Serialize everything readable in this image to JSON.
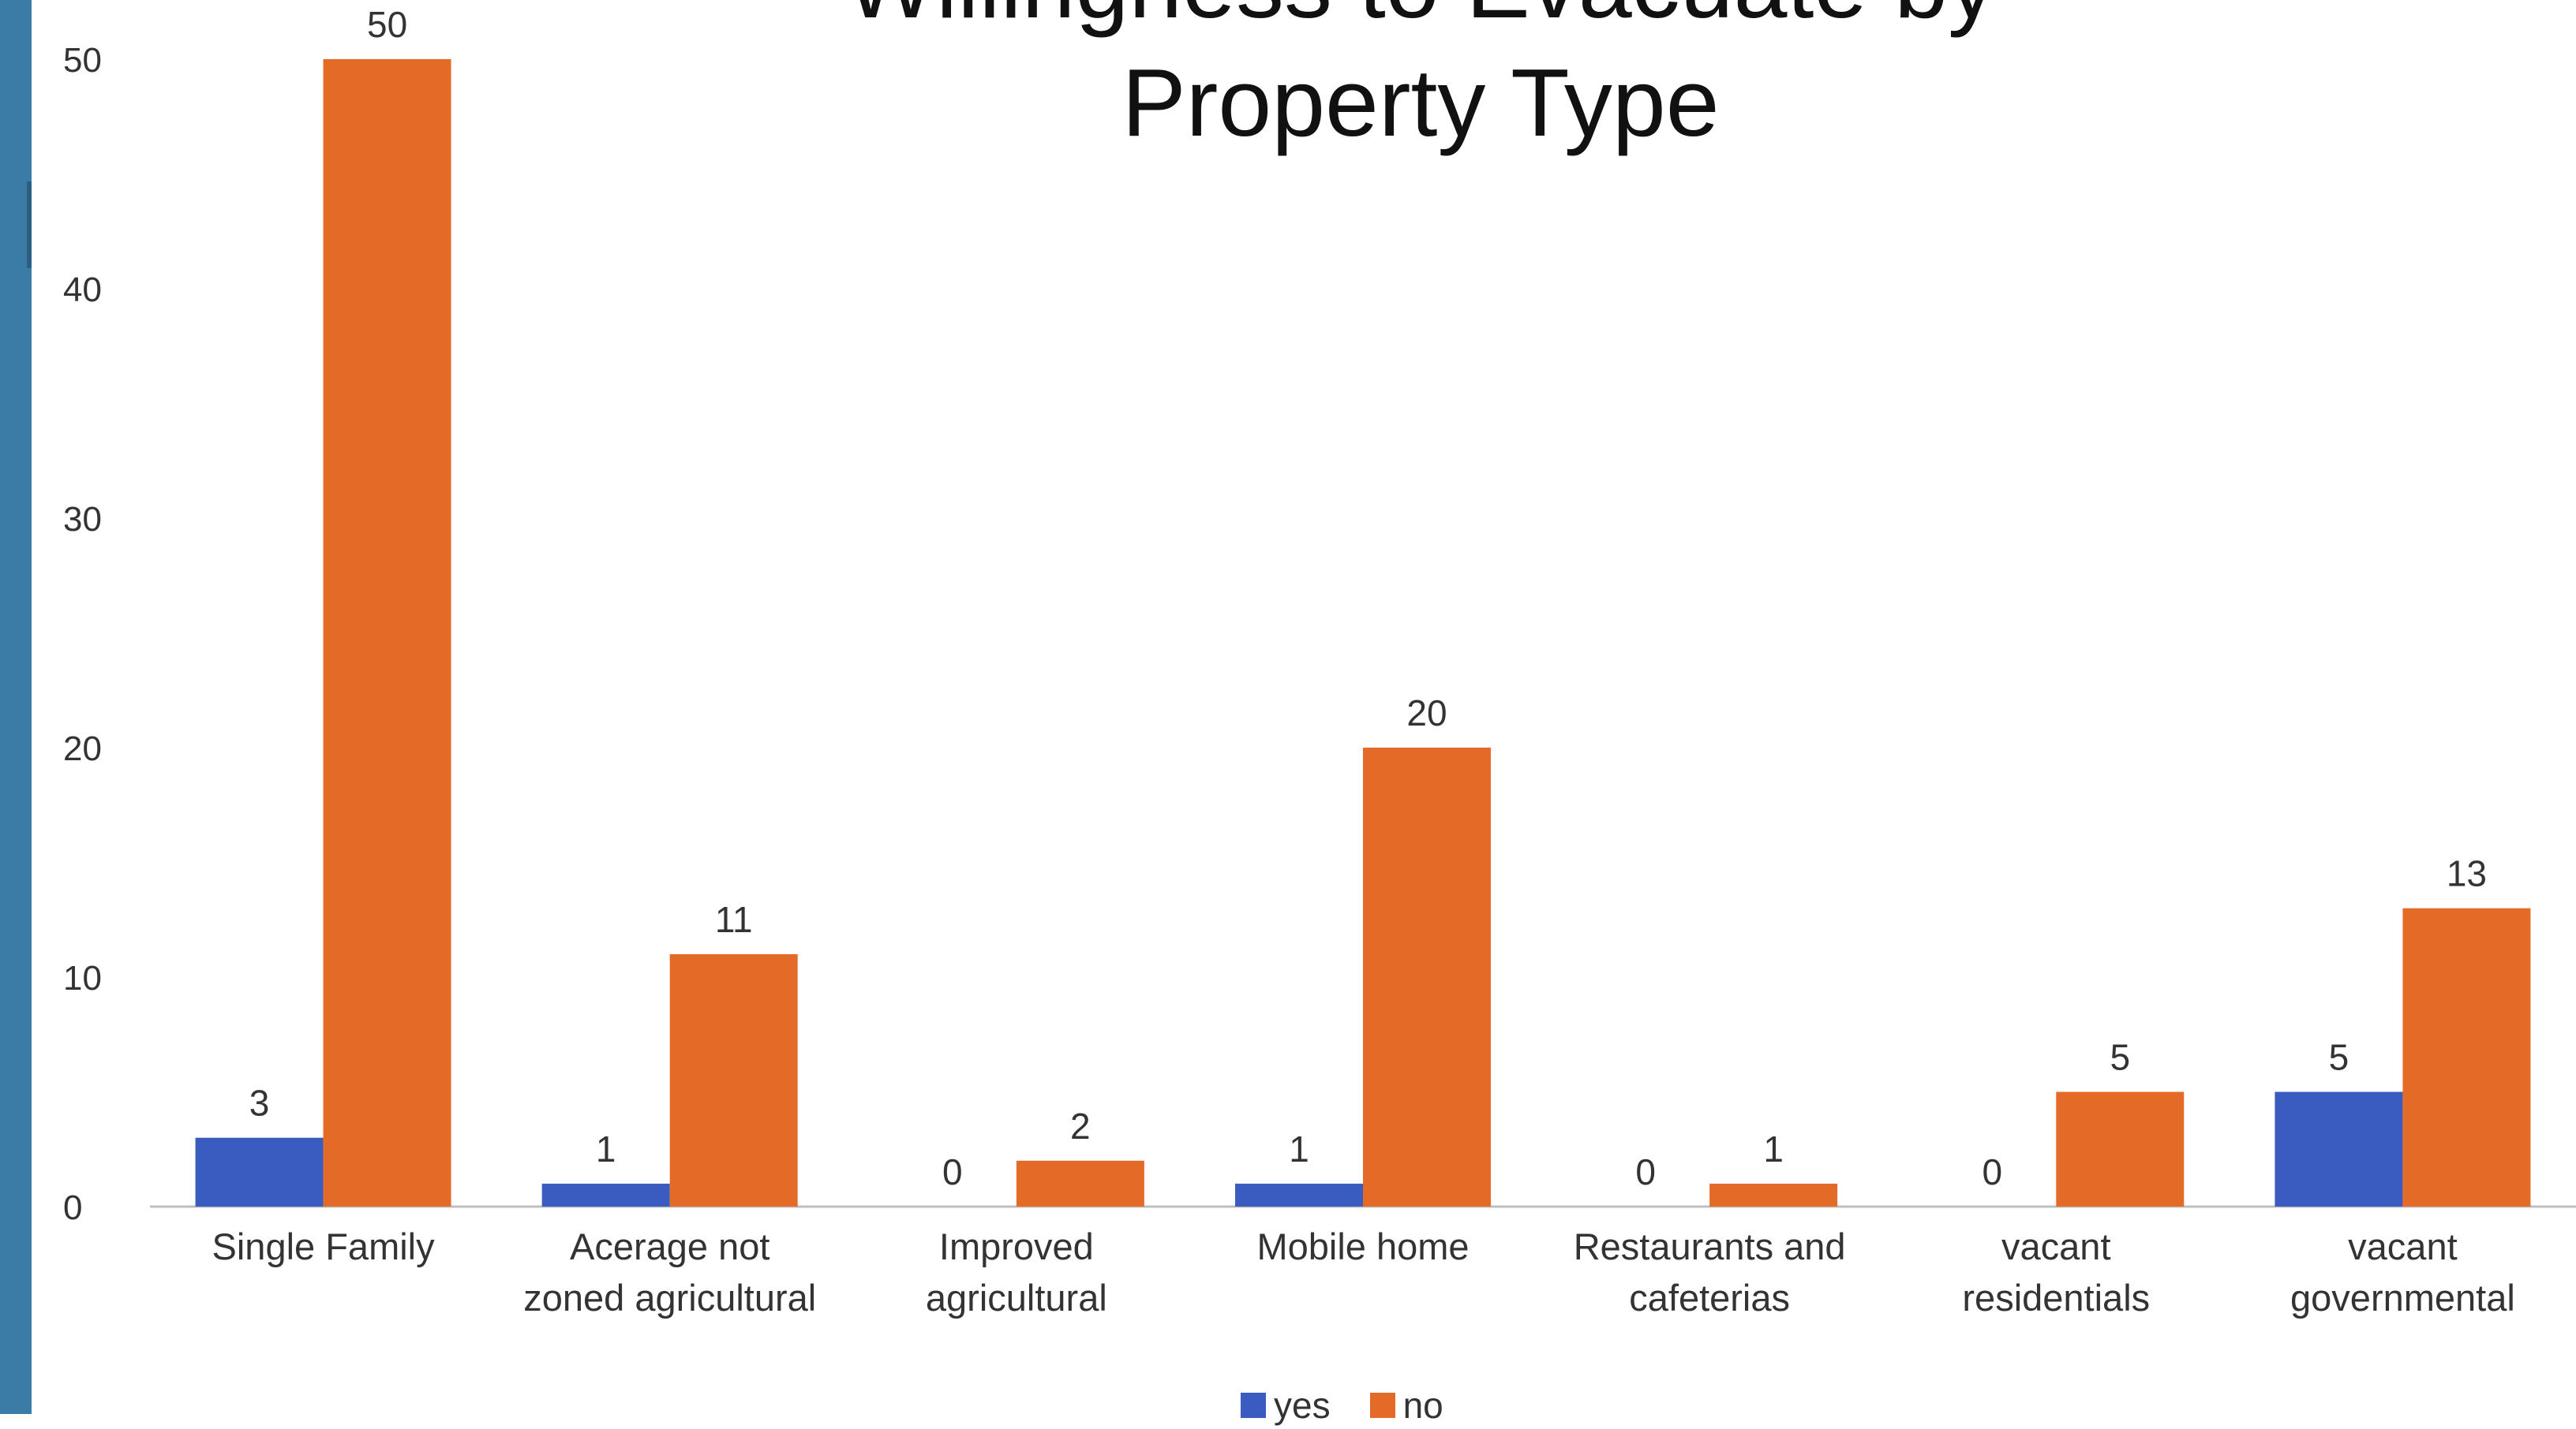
{
  "chart_data": {
    "type": "bar",
    "title": "Willingness to Evacuate by Property Type",
    "title_lines": [
      "Willingness to Evacuate by",
      "Property Type"
    ],
    "categories": [
      [
        "Single Family"
      ],
      [
        "Acerage not",
        "zoned agricultural"
      ],
      [
        "Improved",
        "agricultural"
      ],
      [
        "Mobile home"
      ],
      [
        "Restaurants and",
        "cafeterias"
      ],
      [
        "vacant",
        "residentials"
      ],
      [
        "vacant",
        "governmental"
      ]
    ],
    "series": [
      {
        "name": "yes",
        "color": "#3a5bbf",
        "values": [
          3,
          1,
          0,
          1,
          0,
          0,
          5
        ]
      },
      {
        "name": "no",
        "color": "#e46a27",
        "values": [
          50,
          11,
          2,
          20,
          1,
          5,
          13
        ]
      }
    ],
    "ylim": [
      0,
      50
    ],
    "yticks": [
      0,
      10,
      20,
      30,
      40,
      50
    ],
    "xlabel": "",
    "ylabel": "",
    "grid": false,
    "legend_position": "bottom",
    "data_labels": true
  },
  "colors": {
    "sidebar": "#3a7ca5",
    "axis": "#bfbfbf"
  }
}
